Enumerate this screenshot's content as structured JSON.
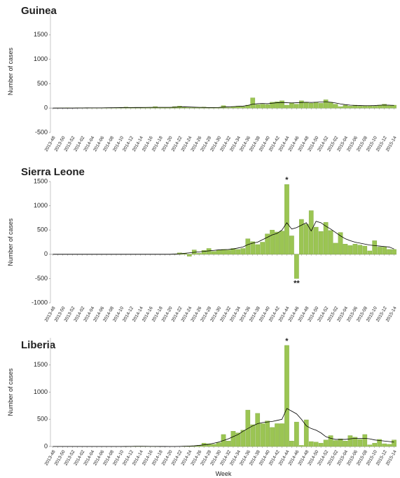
{
  "chart_data": [
    {
      "type": "bar",
      "title": "Guinea",
      "y_label": "Number of cases",
      "categories": [
        "2013-48",
        null,
        "2013-50",
        null,
        "2013-52",
        null,
        "2014-02",
        null,
        "2014-04",
        null,
        "2014-06",
        null,
        "2014-08",
        null,
        "2014-10",
        null,
        "2014-12",
        null,
        "2014-14",
        null,
        "2014-16",
        null,
        "2014-18",
        null,
        "2014-20",
        null,
        "2014-22",
        null,
        "2014-24",
        null,
        "2014-26",
        null,
        "2014-28",
        null,
        "2014-30",
        null,
        "2014-32",
        null,
        "2014-34",
        null,
        "2014-36",
        null,
        "2014-38",
        null,
        "2014-40",
        null,
        "2014-42",
        null,
        "2014-44",
        null,
        "2014-46",
        null,
        "2014-48",
        null,
        "2014-50",
        null,
        "2014-52",
        null,
        "2015-02",
        null,
        "2015-04",
        null,
        "2015-06",
        null,
        "2015-08",
        null,
        "2015-10",
        null,
        "2015-12",
        null,
        "2015-14"
      ],
      "series": [
        {
          "color": "#9bc553",
          "values": [
            0,
            2,
            3,
            5,
            2,
            5,
            3,
            8,
            5,
            6,
            4,
            8,
            7,
            10,
            12,
            20,
            15,
            10,
            12,
            15,
            10,
            30,
            15,
            10,
            12,
            30,
            40,
            20,
            10,
            10,
            15,
            20,
            10,
            10,
            10,
            50,
            10,
            30,
            40,
            30,
            60,
            210,
            70,
            80,
            70,
            120,
            130,
            150,
            60,
            110,
            80,
            150,
            120,
            100,
            120,
            100,
            170,
            120,
            80,
            30,
            60,
            40,
            60,
            40,
            50,
            50,
            40,
            60,
            80,
            50,
            60
          ]
        },
        {
          "type": "line",
          "color": "#000000",
          "values": [
            0,
            0,
            0,
            0,
            0,
            2,
            3,
            4,
            5,
            5,
            5,
            6,
            7,
            8,
            9,
            10,
            12,
            13,
            13,
            14,
            15,
            15,
            15,
            15,
            15,
            18,
            22,
            25,
            22,
            18,
            15,
            14,
            12,
            12,
            14,
            20,
            25,
            30,
            35,
            40,
            55,
            80,
            90,
            95,
            90,
            100,
            110,
            115,
            110,
            105,
            110,
            115,
            120,
            115,
            120,
            125,
            130,
            120,
            105,
            85,
            70,
            60,
            55,
            52,
            50,
            50,
            52,
            58,
            62,
            60,
            55
          ]
        }
      ],
      "ylim": [
        -500,
        2000
      ],
      "yticks": [
        -500,
        0,
        500,
        1000,
        1500
      ],
      "annotations": []
    },
    {
      "type": "bar",
      "title": "Sierra Leone",
      "y_label": "Number of cases",
      "categories": [
        "2013-48",
        null,
        "2013-50",
        null,
        "2013-52",
        null,
        "2014-02",
        null,
        "2014-04",
        null,
        "2014-06",
        null,
        "2014-08",
        null,
        "2014-10",
        null,
        "2014-12",
        null,
        "2014-14",
        null,
        "2014-16",
        null,
        "2014-18",
        null,
        "2014-20",
        null,
        "2014-22",
        null,
        "2014-24",
        null,
        "2014-26",
        null,
        "2014-28",
        null,
        "2014-30",
        null,
        "2014-32",
        null,
        "2014-34",
        null,
        "2014-36",
        null,
        "2014-38",
        null,
        "2014-40",
        null,
        "2014-42",
        null,
        "2014-44",
        null,
        "2014-46",
        null,
        "2014-48",
        null,
        "2014-50",
        null,
        "2014-52",
        null,
        "2015-02",
        null,
        "2015-04",
        null,
        "2015-06",
        null,
        "2015-08",
        null,
        "2015-10",
        null,
        "2015-12",
        null,
        "2015-14"
      ],
      "series": [
        {
          "color": "#9bc553",
          "values": [
            0,
            0,
            0,
            0,
            0,
            0,
            0,
            0,
            0,
            0,
            0,
            0,
            0,
            0,
            0,
            0,
            0,
            0,
            0,
            0,
            0,
            0,
            0,
            0,
            0,
            5,
            30,
            20,
            -40,
            90,
            20,
            80,
            120,
            60,
            90,
            100,
            90,
            120,
            100,
            120,
            320,
            260,
            200,
            250,
            420,
            500,
            460,
            480,
            1440,
            380,
            -500,
            720,
            620,
            900,
            560,
            470,
            660,
            490,
            230,
            450,
            210,
            180,
            210,
            190,
            170,
            70,
            280,
            150,
            150,
            100,
            100
          ]
        },
        {
          "type": "line",
          "color": "#000000",
          "values": [
            0,
            0,
            0,
            0,
            0,
            0,
            0,
            0,
            0,
            0,
            0,
            0,
            0,
            0,
            0,
            0,
            0,
            0,
            0,
            0,
            0,
            0,
            0,
            0,
            0,
            5,
            10,
            20,
            30,
            40,
            50,
            60,
            70,
            80,
            90,
            95,
            100,
            110,
            130,
            150,
            200,
            230,
            250,
            300,
            350,
            400,
            430,
            500,
            650,
            520,
            550,
            600,
            650,
            480,
            680,
            650,
            580,
            520,
            450,
            380,
            320,
            280,
            250,
            230,
            210,
            190,
            180,
            170,
            160,
            150,
            110
          ]
        }
      ],
      "ylim": [
        -1000,
        1500
      ],
      "yticks": [
        -1000,
        -500,
        0,
        500,
        1000,
        1500
      ],
      "annotations": [
        {
          "text": "*",
          "category": "2014-44"
        },
        {
          "text": "**",
          "category": "2014-46"
        }
      ]
    },
    {
      "type": "bar",
      "title": "Liberia",
      "y_label": "Number of cases",
      "x_label": "Week",
      "categories": [
        "2013-48",
        null,
        "2013-50",
        null,
        "2013-52",
        null,
        "2014-02",
        null,
        "2014-04",
        null,
        "2014-06",
        null,
        "2014-08",
        null,
        "2014-10",
        null,
        "2014-12",
        null,
        "2014-14",
        null,
        "2014-16",
        null,
        "2014-18",
        null,
        "2014-20",
        null,
        "2014-22",
        null,
        "2014-24",
        null,
        "2014-26",
        null,
        "2014-28",
        null,
        "2014-30",
        null,
        "2014-32",
        null,
        "2014-34",
        null,
        "2014-36",
        null,
        "2014-38",
        null,
        "2014-40",
        null,
        "2014-42",
        null,
        "2014-44",
        null,
        "2014-46",
        null,
        "2014-48",
        null,
        "2014-50",
        null,
        "2014-52",
        null,
        "2015-02",
        null,
        "2015-04",
        null,
        "2015-06",
        null,
        "2015-08",
        null,
        "2015-10",
        null,
        "2015-12",
        null,
        "2015-14"
      ],
      "series": [
        {
          "color": "#9bc553",
          "values": [
            0,
            0,
            0,
            0,
            0,
            0,
            0,
            0,
            0,
            0,
            0,
            0,
            0,
            0,
            0,
            2,
            2,
            5,
            5,
            3,
            2,
            2,
            1,
            0,
            0,
            0,
            0,
            5,
            10,
            10,
            20,
            60,
            50,
            40,
            70,
            220,
            100,
            280,
            250,
            300,
            670,
            400,
            610,
            420,
            470,
            350,
            420,
            420,
            1860,
            100,
            450,
            20,
            490,
            90,
            80,
            60,
            120,
            200,
            110,
            140,
            100,
            200,
            170,
            130,
            220,
            30,
            60,
            130,
            50,
            40,
            120
          ]
        },
        {
          "type": "line",
          "color": "#000000",
          "values": [
            0,
            0,
            0,
            0,
            0,
            0,
            0,
            0,
            0,
            0,
            0,
            0,
            0,
            0,
            0,
            1,
            2,
            3,
            3,
            3,
            2,
            2,
            1,
            1,
            0,
            0,
            2,
            5,
            8,
            12,
            20,
            30,
            40,
            60,
            80,
            110,
            140,
            180,
            220,
            280,
            330,
            380,
            420,
            440,
            450,
            460,
            480,
            500,
            700,
            650,
            600,
            500,
            380,
            330,
            300,
            250,
            180,
            150,
            130,
            130,
            130,
            140,
            150,
            150,
            150,
            140,
            120,
            110,
            100,
            90,
            80
          ]
        }
      ],
      "ylim": [
        0,
        2000
      ],
      "yticks": [
        0,
        500,
        1000,
        1500
      ],
      "annotations": [
        {
          "text": "*",
          "category": "2014-44"
        }
      ]
    }
  ]
}
